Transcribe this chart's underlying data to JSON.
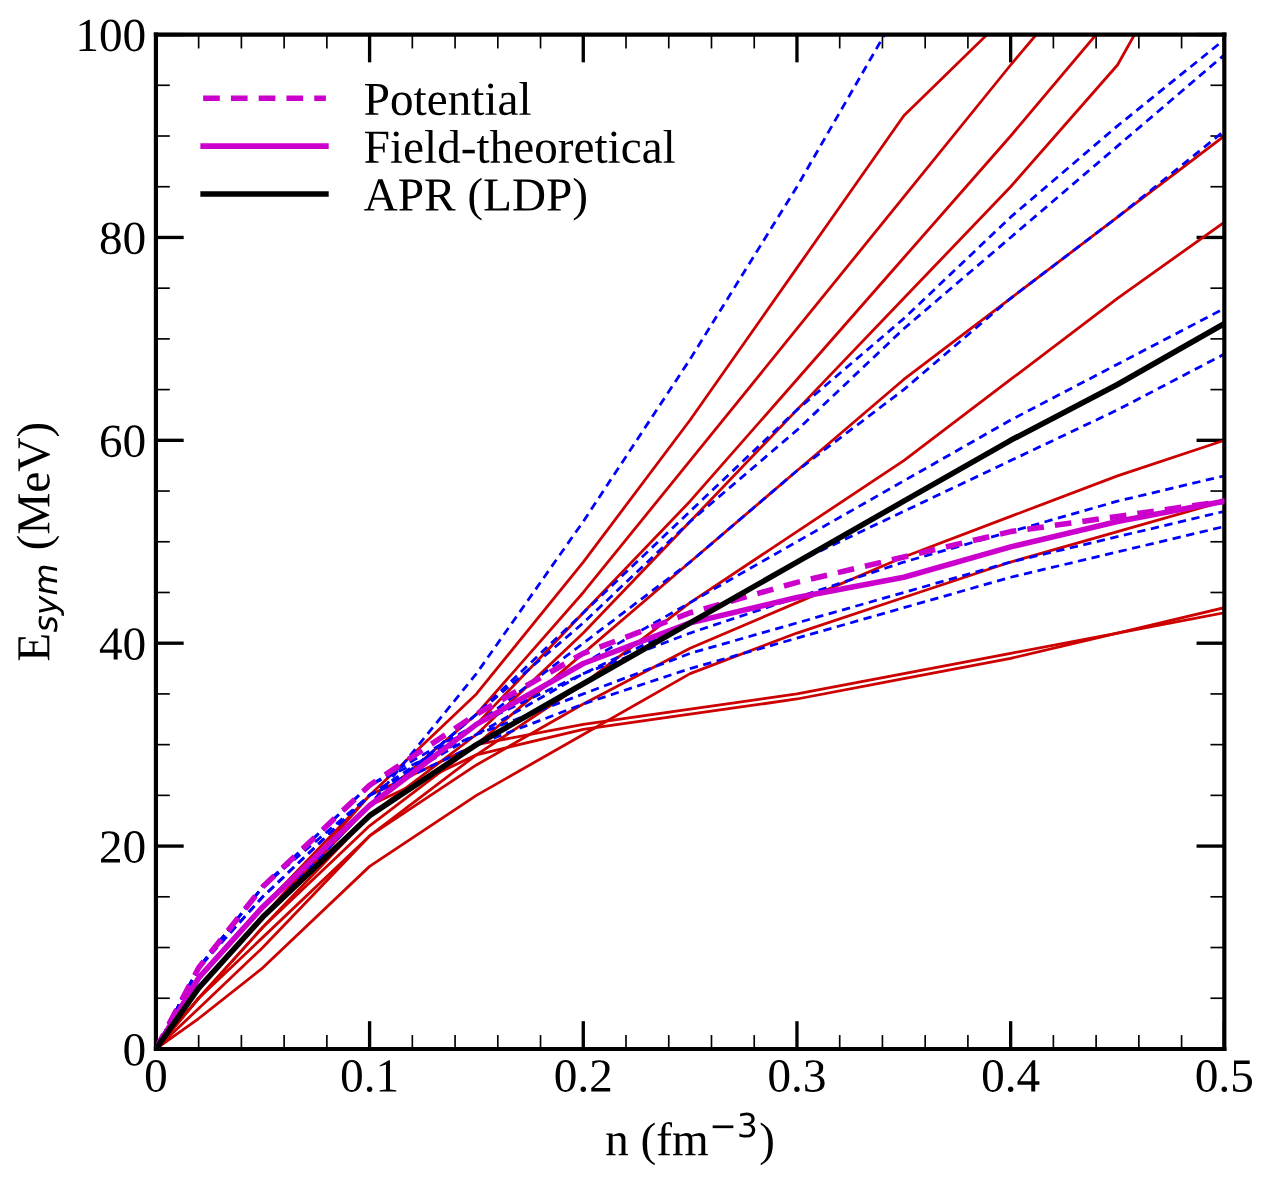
{
  "chart_data": {
    "type": "line",
    "xlabel": "n (fm$^{−3}$)",
    "ylabel": "E$_{sym}$ (MeV)",
    "xlim": [
      0,
      0.5
    ],
    "ylim": [
      0,
      100
    ],
    "xticks": [
      0,
      0.1,
      0.2,
      0.3,
      0.4,
      0.5
    ],
    "yticks": [
      0,
      20,
      40,
      60,
      80,
      100
    ],
    "grid": false,
    "legend": "top left",
    "marker": "none",
    "x": [
      0,
      0.02,
      0.05,
      0.1,
      0.15,
      0.2,
      0.25,
      0.3,
      0.35,
      0.4,
      0.45,
      0.5
    ],
    "series": [
      {
        "name": "Potential",
        "color": "#cc00cc",
        "line_style": "dashed",
        "values": [
          0,
          8,
          16,
          26,
          33,
          39,
          43,
          46,
          48.5,
          51,
          52.5,
          54
        ]
      },
      {
        "name": "Field-theoretical",
        "color": "#cc00cc",
        "line_style": "solid",
        "values": [
          0,
          7,
          14,
          24,
          32,
          38,
          42,
          44.5,
          46.5,
          49.5,
          52,
          54
        ]
      },
      {
        "name": "APR (LDP)",
        "color": "#000000",
        "line_style": "solid",
        "values": [
          0,
          6,
          13,
          23,
          30,
          36,
          42,
          48,
          54,
          60,
          65.5,
          71.5
        ]
      },
      {
        "color": "#cc0000",
        "line_style": "solid",
        "x": [
          0,
          0.02,
          0.05,
          0.1,
          0.15,
          0.2,
          0.25,
          0.3,
          0.35,
          0.389
        ],
        "values": [
          0,
          6,
          13,
          25,
          35,
          48,
          62,
          77,
          92,
          100
        ]
      },
      {
        "color": "#cc0000",
        "line_style": "solid",
        "x": [
          0,
          0.02,
          0.05,
          0.1,
          0.15,
          0.2,
          0.25,
          0.3,
          0.35,
          0.4,
          0.412
        ],
        "values": [
          0,
          6,
          13,
          24,
          33,
          45,
          58,
          71,
          84,
          97,
          100
        ]
      },
      {
        "color": "#cc0000",
        "line_style": "solid",
        "x": [
          0,
          0.02,
          0.05,
          0.1,
          0.15,
          0.2,
          0.25,
          0.3,
          0.35,
          0.4,
          0.44
        ],
        "values": [
          0,
          6,
          13,
          24,
          32,
          43,
          54,
          66,
          78,
          90,
          100
        ]
      },
      {
        "color": "#cc0000",
        "line_style": "solid",
        "x": [
          0,
          0.02,
          0.05,
          0.1,
          0.15,
          0.2,
          0.25,
          0.3,
          0.35,
          0.4,
          0.45,
          0.458
        ],
        "values": [
          0,
          5,
          12,
          23,
          31,
          41,
          52,
          63,
          74,
          85,
          97,
          100
        ]
      },
      {
        "color": "#cc0000",
        "line_style": "solid",
        "values": [
          0,
          5,
          12,
          22,
          30,
          39,
          48,
          57,
          66,
          74,
          82,
          90
        ]
      },
      {
        "color": "#cc0000",
        "line_style": "solid",
        "values": [
          0,
          5,
          11,
          21,
          29,
          36,
          44,
          51,
          58,
          66,
          74,
          81.5
        ]
      },
      {
        "color": "#cc0000",
        "line_style": "solid",
        "values": [
          0,
          4,
          10,
          21,
          28,
          34,
          39.5,
          44,
          48.5,
          52.5,
          56.5,
          60
        ]
      },
      {
        "color": "#cc0000",
        "line_style": "solid",
        "values": [
          0,
          3,
          8,
          18,
          25,
          31,
          37,
          41,
          44.5,
          48,
          51,
          54
        ]
      },
      {
        "color": "#cc0000",
        "line_style": "solid",
        "values": [
          0,
          7,
          14,
          24,
          29,
          31.5,
          33,
          34.5,
          36.5,
          38.5,
          41,
          43.5
        ]
      },
      {
        "color": "#cc0000",
        "line_style": "solid",
        "values": [
          0,
          7,
          14,
          25,
          30,
          32,
          33.5,
          35,
          37,
          39,
          41,
          43
        ]
      },
      {
        "color": "#0000ff",
        "line_style": "dashed",
        "x": [
          0,
          0.02,
          0.05,
          0.1,
          0.15,
          0.2,
          0.25,
          0.3,
          0.341
        ],
        "values": [
          0,
          6,
          13,
          24,
          37,
          52,
          68,
          85,
          100
        ]
      },
      {
        "color": "#0000ff",
        "line_style": "dashed",
        "values": [
          0,
          7,
          14,
          24,
          33,
          43,
          53,
          63,
          72,
          82,
          91,
          99.5
        ]
      },
      {
        "color": "#0000ff",
        "line_style": "dashed",
        "values": [
          0,
          7,
          14,
          24,
          33,
          42,
          52,
          61,
          71,
          80,
          89,
          98
        ]
      },
      {
        "color": "#0000ff",
        "line_style": "dashed",
        "values": [
          0,
          7,
          14,
          24,
          32,
          40,
          48,
          57,
          65,
          74,
          82,
          90.5
        ]
      },
      {
        "color": "#0000ff",
        "line_style": "dashed",
        "values": [
          0,
          8,
          15,
          25,
          32,
          38,
          44,
          50,
          56,
          62,
          67.5,
          73
        ]
      },
      {
        "color": "#0000ff",
        "line_style": "dashed",
        "values": [
          0,
          8,
          15,
          25,
          31,
          37,
          42,
          48,
          53,
          58,
          63,
          68.5
        ]
      },
      {
        "color": "#0000ff",
        "line_style": "dashed",
        "values": [
          0,
          8,
          16,
          26,
          32,
          37,
          41,
          44.5,
          48,
          51,
          54,
          56.5
        ]
      },
      {
        "color": "#0000ff",
        "line_style": "dashed",
        "values": [
          0,
          8,
          16,
          26,
          31,
          35,
          39,
          42,
          45,
          48,
          50.5,
          53
        ]
      },
      {
        "color": "#0000ff",
        "line_style": "dashed",
        "values": [
          0,
          8,
          16,
          25,
          30,
          34,
          37.5,
          40.5,
          43.5,
          46.5,
          49,
          51.5
        ]
      }
    ]
  }
}
